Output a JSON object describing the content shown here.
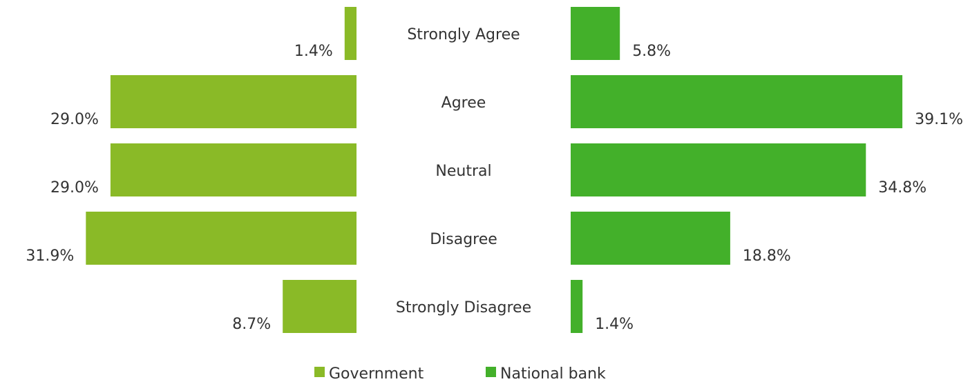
{
  "chart_data": {
    "type": "bar",
    "orientation": "horizontal-butterfly",
    "categories": [
      "Strongly Agree",
      "Agree",
      "Neutral",
      "Disagree",
      "Strongly Disagree"
    ],
    "series": [
      {
        "name": "Government",
        "side": "left",
        "color": "#8aba27",
        "values": [
          1.4,
          29.0,
          29.0,
          31.9,
          8.7
        ],
        "labels": [
          "1.4%",
          "29.0%",
          "29.0%",
          "31.9%",
          "8.7%"
        ]
      },
      {
        "name": "National bank",
        "side": "right",
        "color": "#43b02a",
        "values": [
          5.8,
          39.1,
          34.8,
          18.8,
          1.4
        ],
        "labels": [
          "5.8%",
          "39.1%",
          "34.8%",
          "18.8%",
          "1.4%"
        ]
      }
    ],
    "unit": "%",
    "legend_position": "bottom-center",
    "grid": false,
    "text_color": "#333333"
  }
}
